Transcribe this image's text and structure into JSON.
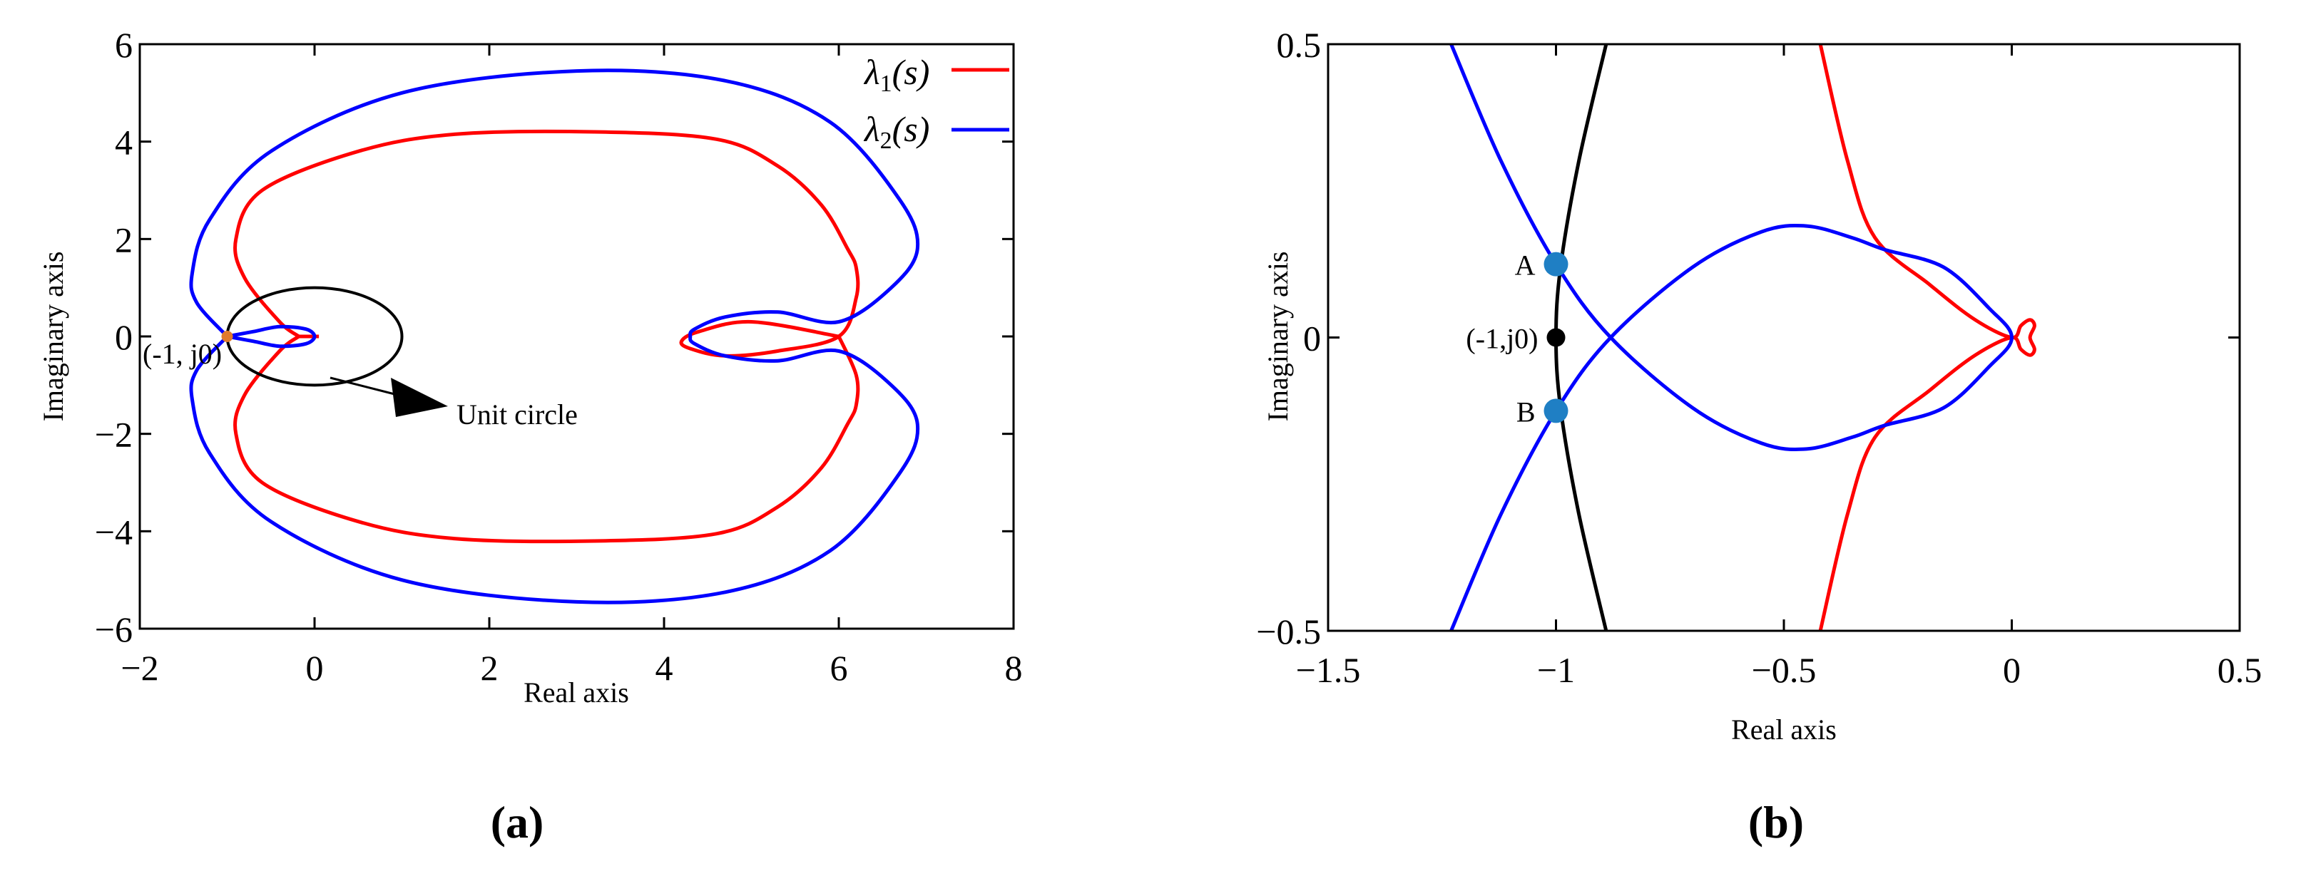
{
  "chart_data": [
    {
      "type": "line",
      "panel_label": "(a)",
      "xlabel": "Real axis",
      "ylabel": "Imaginary axis",
      "xlim": [
        -2,
        8
      ],
      "ylim": [
        -6,
        6
      ],
      "xticks": [
        -2,
        0,
        2,
        4,
        6,
        8
      ],
      "yticks": [
        -6,
        -4,
        -2,
        0,
        2,
        4,
        6
      ],
      "xtick_labels": [
        "−2",
        "0",
        "2",
        "4",
        "6",
        "8"
      ],
      "ytick_labels": [
        "−6",
        "−4",
        "−2",
        "0",
        "2",
        "4",
        "6"
      ],
      "grid": false,
      "legend": {
        "placement": "top-right",
        "entries": [
          {
            "base": "λ",
            "sub": "1",
            "arg": "(s)",
            "color": "#ff0000"
          },
          {
            "base": "λ",
            "sub": "2",
            "arg": "(s)",
            "color": "#0000ff"
          }
        ]
      },
      "series": [
        {
          "color": "#ff0000",
          "branches": [
            [
              [
                -0.18,
                0
              ],
              [
                -0.4,
                0.3
              ],
              [
                -0.8,
                1.2
              ],
              [
                -0.9,
                2
              ],
              [
                -0.6,
                3
              ],
              [
                0.5,
                3.8
              ],
              [
                1.6,
                4.15
              ],
              [
                3.2,
                4.2
              ],
              [
                4.6,
                4.05
              ],
              [
                5.3,
                3.5
              ],
              [
                5.8,
                2.7
              ],
              [
                6.1,
                1.8
              ],
              [
                6.2,
                1.4
              ],
              [
                6.2,
                0.8
              ],
              [
                6.0,
                0
              ],
              [
                5.3,
                -0.3
              ],
              [
                4.7,
                -0.4
              ],
              [
                4.3,
                -0.25
              ],
              [
                4.2,
                -0.1
              ],
              [
                4.4,
                0.1
              ],
              [
                5.0,
                0.3
              ],
              [
                6.0,
                0
              ]
            ],
            [
              [
                -0.18,
                0
              ],
              [
                -0.4,
                -0.3
              ],
              [
                -0.8,
                -1.2
              ],
              [
                -0.9,
                -2
              ],
              [
                -0.6,
                -3
              ],
              [
                0.5,
                -3.8
              ],
              [
                1.6,
                -4.15
              ],
              [
                3.2,
                -4.2
              ],
              [
                4.6,
                -4.05
              ],
              [
                5.3,
                -3.5
              ],
              [
                5.8,
                -2.7
              ],
              [
                6.1,
                -1.8
              ],
              [
                6.2,
                -1.4
              ],
              [
                6.2,
                -0.8
              ],
              [
                6.0,
                0
              ]
            ],
            [
              [
                -0.18,
                0
              ],
              [
                0.05,
                0
              ]
            ]
          ]
        },
        {
          "color": "#0000ff",
          "branches": [
            [
              [
                -1.0,
                0
              ],
              [
                -1.35,
                0.7
              ],
              [
                -1.4,
                1.3
              ],
              [
                -1.2,
                2.4
              ],
              [
                -0.5,
                3.8
              ],
              [
                1.0,
                5.0
              ],
              [
                3.0,
                5.45
              ],
              [
                4.7,
                5.25
              ],
              [
                5.9,
                4.4
              ],
              [
                6.7,
                2.8
              ],
              [
                6.9,
                1.8
              ],
              [
                6.6,
                1.0
              ],
              [
                6.0,
                0.3
              ],
              [
                5.3,
                0.5
              ],
              [
                4.7,
                0.4
              ],
              [
                4.35,
                0.15
              ],
              [
                4.3,
                0
              ],
              [
                4.35,
                -0.15
              ],
              [
                4.7,
                -0.4
              ],
              [
                5.3,
                -0.5
              ],
              [
                6.0,
                -0.3
              ],
              [
                6.6,
                -1.0
              ],
              [
                6.9,
                -1.8
              ],
              [
                6.7,
                -2.8
              ],
              [
                5.9,
                -4.4
              ],
              [
                4.7,
                -5.25
              ],
              [
                3.0,
                -5.45
              ],
              [
                1.0,
                -5.0
              ],
              [
                -0.5,
                -3.8
              ],
              [
                -1.2,
                -2.4
              ],
              [
                -1.4,
                -1.3
              ],
              [
                -1.35,
                -0.7
              ],
              [
                -1.0,
                0
              ]
            ],
            [
              [
                -1.0,
                0
              ],
              [
                -0.7,
                0.1
              ],
              [
                -0.4,
                0.2
              ],
              [
                -0.1,
                0.15
              ],
              [
                0.0,
                0.0
              ],
              [
                -0.1,
                -0.15
              ],
              [
                -0.4,
                -0.2
              ],
              [
                -0.7,
                -0.1
              ],
              [
                -1.0,
                0
              ]
            ]
          ]
        },
        {
          "color": "#000000",
          "circle": {
            "cx": 0,
            "cy": 0,
            "r": 1
          }
        }
      ],
      "points": [
        {
          "x": -1,
          "y": 0,
          "color": "#e07a2e"
        }
      ],
      "annotations": [
        {
          "text": "(-1, j0)",
          "x": -1,
          "y": 0
        },
        {
          "text": "Unit circle",
          "x": 2.8,
          "y": -1.7
        }
      ]
    },
    {
      "type": "line",
      "panel_label": "(b)",
      "xlabel": "Real axis",
      "ylabel": "Imaginary axis",
      "xlim": [
        -1.5,
        0.5
      ],
      "ylim": [
        -0.5,
        0.5
      ],
      "xticks": [
        -1.5,
        -1,
        -0.5,
        0,
        0.5
      ],
      "yticks": [
        -0.5,
        0,
        0.5
      ],
      "xtick_labels": [
        "−1.5",
        "−1",
        "−0.5",
        "0",
        "0.5"
      ],
      "ytick_labels": [
        "−0.5",
        "0",
        "0.5"
      ],
      "grid": false,
      "series": [
        {
          "color": "#000000",
          "branches": [
            [
              [
                -0.89,
                0.5
              ],
              [
                -0.95,
                0.3
              ],
              [
                -0.99,
                0.12
              ],
              [
                -1.0,
                0
              ],
              [
                -0.99,
                -0.12
              ],
              [
                -0.95,
                -0.3
              ],
              [
                -0.89,
                -0.5
              ]
            ]
          ]
        },
        {
          "color": "#ff0000",
          "branches": [
            [
              [
                -0.42,
                0.5
              ],
              [
                -0.36,
                0.3
              ],
              [
                -0.3,
                0.17
              ],
              [
                -0.18,
                0.09
              ],
              [
                -0.08,
                0.03
              ],
              [
                0,
                0
              ],
              [
                0.02,
                0.02
              ],
              [
                0.04,
                0.03
              ],
              [
                0.05,
                0.02
              ],
              [
                0.04,
                0
              ],
              [
                0.05,
                -0.02
              ],
              [
                0.04,
                -0.03
              ],
              [
                0.02,
                -0.02
              ],
              [
                0,
                0
              ],
              [
                -0.08,
                -0.03
              ],
              [
                -0.18,
                -0.09
              ],
              [
                -0.3,
                -0.17
              ],
              [
                -0.36,
                -0.3
              ],
              [
                -0.42,
                -0.5
              ]
            ]
          ]
        },
        {
          "color": "#0000ff",
          "branches": [
            [
              [
                -1.23,
                0.5
              ],
              [
                -1.12,
                0.3
              ],
              [
                -1.0,
                0.125
              ],
              [
                -0.88,
                0
              ],
              [
                -0.7,
                -0.12
              ],
              [
                -0.55,
                -0.18
              ],
              [
                -0.45,
                -0.19
              ],
              [
                -0.35,
                -0.17
              ],
              [
                -0.28,
                -0.15
              ],
              [
                -0.15,
                -0.12
              ],
              [
                -0.05,
                -0.05
              ],
              [
                0,
                0
              ],
              [
                -0.05,
                0.05
              ],
              [
                -0.15,
                0.12
              ],
              [
                -0.28,
                0.15
              ],
              [
                -0.35,
                0.17
              ],
              [
                -0.45,
                0.19
              ],
              [
                -0.55,
                0.18
              ],
              [
                -0.7,
                0.12
              ],
              [
                -0.88,
                0
              ],
              [
                -1.0,
                -0.125
              ],
              [
                -1.12,
                -0.3
              ],
              [
                -1.23,
                -0.5
              ]
            ]
          ]
        }
      ],
      "points": [
        {
          "x": -1,
          "y": 0.125,
          "color": "#1f7fc4",
          "label": "A"
        },
        {
          "x": -1,
          "y": 0,
          "color": "#000000",
          "label": "(-1,j0)"
        },
        {
          "x": -1,
          "y": -0.125,
          "color": "#1f7fc4",
          "label": "B"
        }
      ]
    }
  ]
}
